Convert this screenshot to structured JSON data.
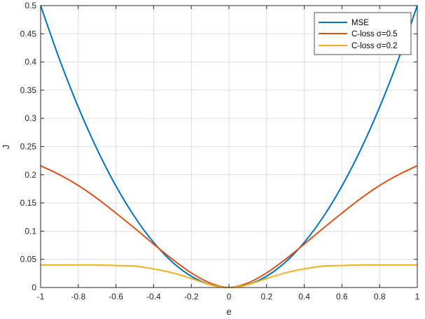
{
  "chart_data": {
    "type": "line",
    "title": "",
    "xlabel": "e",
    "ylabel": "J",
    "xlim": [
      -1,
      1
    ],
    "ylim": [
      0,
      0.5
    ],
    "xticks": [
      -1,
      -0.8,
      -0.6,
      -0.4,
      -0.2,
      0,
      0.2,
      0.4,
      0.6,
      0.8,
      1
    ],
    "xtick_labels": [
      "-1",
      "-0.8",
      "-0.6",
      "-0.4",
      "-0.2",
      "0",
      "0.2",
      "0.4",
      "0.6",
      "0.8",
      "1"
    ],
    "yticks": [
      0,
      0.05,
      0.1,
      0.15,
      0.2,
      0.25,
      0.3,
      0.35,
      0.4,
      0.45,
      0.5
    ],
    "ytick_labels": [
      "0",
      "0.05",
      "0.1",
      "0.15",
      "0.2",
      "0.25",
      "0.3",
      "0.35",
      "0.4",
      "0.45",
      "0.5"
    ],
    "grid": true,
    "legend_position": "top-right",
    "x": [
      -1,
      -0.9,
      -0.8,
      -0.7,
      -0.6,
      -0.5,
      -0.4,
      -0.3,
      -0.2,
      -0.1,
      0,
      0.1,
      0.2,
      0.3,
      0.4,
      0.5,
      0.6,
      0.7,
      0.8,
      0.9,
      1
    ],
    "series": [
      {
        "name": "MSE",
        "color": "#0072BD",
        "values": [
          0.5,
          0.405,
          0.32,
          0.245,
          0.18,
          0.125,
          0.08,
          0.045,
          0.02,
          0.005,
          0,
          0.005,
          0.02,
          0.045,
          0.08,
          0.125,
          0.18,
          0.245,
          0.32,
          0.405,
          0.5
        ]
      },
      {
        "name": "C-loss σ=0.5",
        "color": "#D95319",
        "values": [
          0.216,
          0.2,
          0.181,
          0.158,
          0.132,
          0.105,
          0.077,
          0.05,
          0.026,
          0.008,
          0,
          0.008,
          0.026,
          0.05,
          0.077,
          0.105,
          0.132,
          0.158,
          0.181,
          0.2,
          0.216
        ]
      },
      {
        "name": "C-loss σ=0.2",
        "color": "#EDB120",
        "values": [
          0.04,
          0.04,
          0.04,
          0.04,
          0.039,
          0.038,
          0.033,
          0.026,
          0.016,
          0.005,
          0,
          0.005,
          0.016,
          0.026,
          0.033,
          0.038,
          0.039,
          0.04,
          0.04,
          0.04,
          0.04
        ]
      }
    ]
  }
}
